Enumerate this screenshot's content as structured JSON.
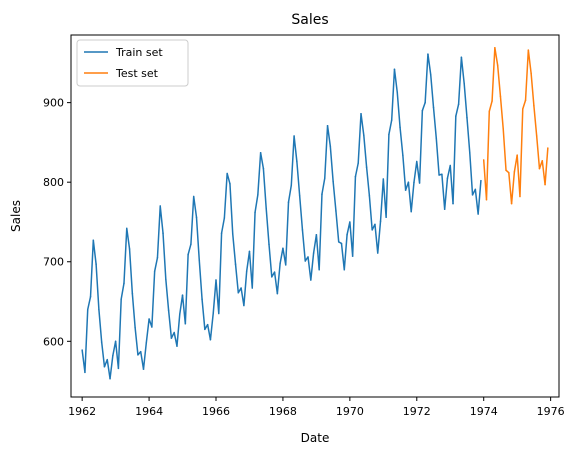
{
  "chart_data": {
    "type": "line",
    "title": "Sales",
    "xlabel": "Date",
    "ylabel": "Sales",
    "x_range": [
      "1961-09",
      "1976-04"
    ],
    "ylim": [
      530,
      985
    ],
    "x_ticks": [
      "1962",
      "1964",
      "1966",
      "1968",
      "1970",
      "1972",
      "1974",
      "1976"
    ],
    "y_ticks": [
      600,
      700,
      800,
      900
    ],
    "grid": false,
    "legend_position": "top-left",
    "series": [
      {
        "name": "Train set",
        "color": "#1f77b4",
        "start": "1962-01",
        "frequency": "monthly",
        "values": [
          589,
          561,
          640,
          656,
          727,
          697,
          640,
          599,
          568,
          577,
          553,
          582,
          600,
          566,
          653,
          673,
          742,
          716,
          660,
          617,
          583,
          587,
          565,
          598,
          628,
          618,
          688,
          705,
          770,
          736,
          678,
          639,
          604,
          611,
          594,
          634,
          658,
          622,
          709,
          722,
          782,
          756,
          702,
          653,
          615,
          621,
          602,
          635,
          677,
          635,
          736,
          755,
          811,
          798,
          735,
          697,
          661,
          667,
          645,
          688,
          713,
          667,
          762,
          784,
          837,
          817,
          767,
          722,
          681,
          687,
          660,
          698,
          717,
          696,
          775,
          796,
          858,
          826,
          783,
          740,
          701,
          706,
          677,
          711,
          734,
          690,
          785,
          805,
          871,
          845,
          801,
          764,
          725,
          723,
          690,
          734,
          750,
          707,
          807,
          824,
          886,
          859,
          819,
          783,
          740,
          747,
          711,
          751,
          804,
          756,
          860,
          878,
          942,
          913,
          869,
          834,
          790,
          800,
          763,
          800,
          826,
          799,
          890,
          900,
          961,
          935,
          894,
          855,
          809,
          810,
          766,
          805,
          821,
          773,
          883,
          898,
          957,
          924,
          881,
          837,
          784,
          791,
          760,
          802
        ]
      },
      {
        "name": "Test set",
        "color": "#ff7f0e",
        "start": "1974-01",
        "frequency": "monthly",
        "values": [
          828,
          778,
          889,
          902,
          969,
          947,
          908,
          867,
          815,
          812,
          773,
          813,
          834,
          782,
          892,
          903,
          966,
          937,
          896,
          858,
          817,
          827,
          797,
          843
        ]
      }
    ]
  }
}
